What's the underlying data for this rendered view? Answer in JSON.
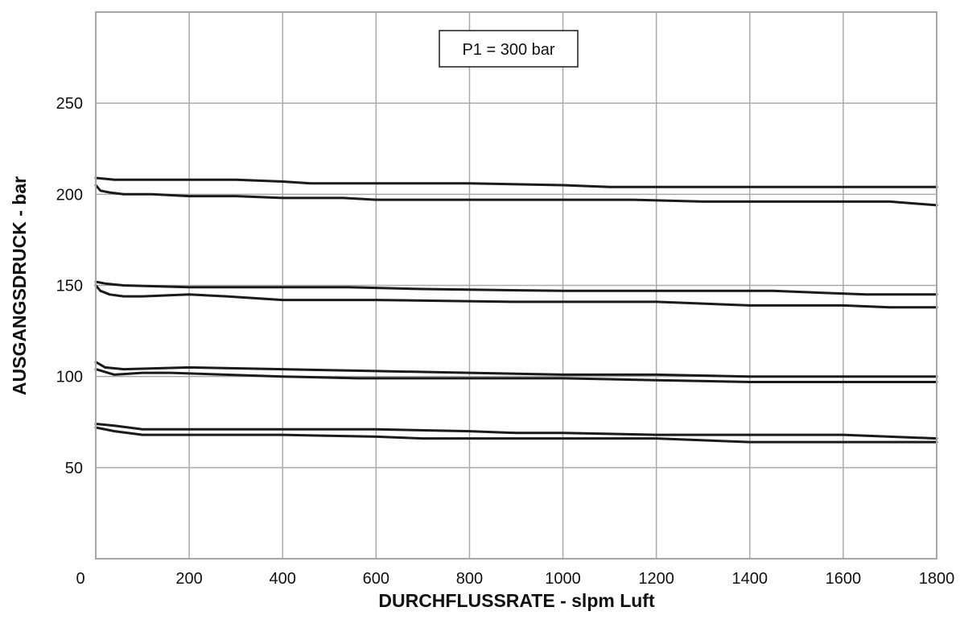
{
  "chart_data": {
    "type": "line",
    "title": "",
    "xlabel": "DURCHFLUSSRATE - slpm Luft",
    "ylabel": "AUSGANGSDRUCK - bar",
    "xlim": [
      0,
      1800
    ],
    "ylim": [
      0,
      300
    ],
    "x_ticks": [
      0,
      200,
      400,
      600,
      800,
      1000,
      1200,
      1400,
      1600,
      1800
    ],
    "x_tick_labels": [
      "0",
      "200",
      "400",
      "600",
      "800",
      "1000",
      "1200",
      "1400",
      "1600",
      "1800"
    ],
    "y_ticks": [
      50,
      100,
      150,
      200,
      250
    ],
    "y_tick_labels": [
      "50",
      "100",
      "150",
      "200",
      "250"
    ],
    "grid": true,
    "legend": "none",
    "annotation": "P1 = 300 bar",
    "line_color": "#1a1a1a",
    "grid_color": "#aaaaaa",
    "series": [
      {
        "x": [
          0,
          40,
          100,
          200,
          300,
          400,
          460,
          600,
          800,
          1000,
          1100,
          1200,
          1400,
          1600,
          1800
        ],
        "y": [
          209,
          208,
          208,
          208,
          208,
          207,
          206,
          206,
          206,
          205,
          204,
          204,
          204,
          204,
          204
        ]
      },
      {
        "x": [
          0,
          10,
          30,
          60,
          120,
          200,
          300,
          400,
          530,
          600,
          800,
          1000,
          1150,
          1300,
          1500,
          1700,
          1800
        ],
        "y": [
          205,
          202,
          201,
          200,
          200,
          199,
          199,
          198,
          198,
          197,
          197,
          197,
          197,
          196,
          196,
          196,
          194
        ]
      },
      {
        "x": [
          0,
          20,
          60,
          200,
          400,
          540,
          700,
          1000,
          1200,
          1450,
          1650,
          1800
        ],
        "y": [
          152,
          151,
          150,
          149,
          149,
          149,
          148,
          147,
          147,
          147,
          145,
          145
        ]
      },
      {
        "x": [
          0,
          10,
          30,
          60,
          100,
          200,
          280,
          400,
          600,
          900,
          1200,
          1400,
          1600,
          1700,
          1800
        ],
        "y": [
          150,
          147,
          145,
          144,
          144,
          145,
          144,
          142,
          142,
          141,
          141,
          139,
          139,
          138,
          138
        ]
      },
      {
        "x": [
          0,
          20,
          60,
          200,
          400,
          600,
          800,
          1000,
          1200,
          1400,
          1600,
          1800
        ],
        "y": [
          108,
          105,
          104,
          105,
          104,
          103,
          102,
          101,
          101,
          100,
          100,
          100
        ]
      },
      {
        "x": [
          0,
          40,
          100,
          160,
          400,
          560,
          800,
          1000,
          1200,
          1400,
          1600,
          1800
        ],
        "y": [
          104,
          101,
          102,
          102,
          100,
          99,
          99,
          99,
          98,
          97,
          97,
          97
        ]
      },
      {
        "x": [
          0,
          40,
          100,
          200,
          300,
          500,
          600,
          800,
          900,
          1000,
          1200,
          1400,
          1600,
          1800
        ],
        "y": [
          74,
          73,
          71,
          71,
          71,
          71,
          71,
          70,
          69,
          69,
          68,
          68,
          68,
          66
        ]
      },
      {
        "x": [
          0,
          40,
          100,
          200,
          400,
          600,
          700,
          800,
          1000,
          1200,
          1400,
          1600,
          1800
        ],
        "y": [
          72,
          70,
          68,
          68,
          68,
          67,
          66,
          66,
          66,
          66,
          64,
          64,
          64
        ]
      }
    ]
  }
}
